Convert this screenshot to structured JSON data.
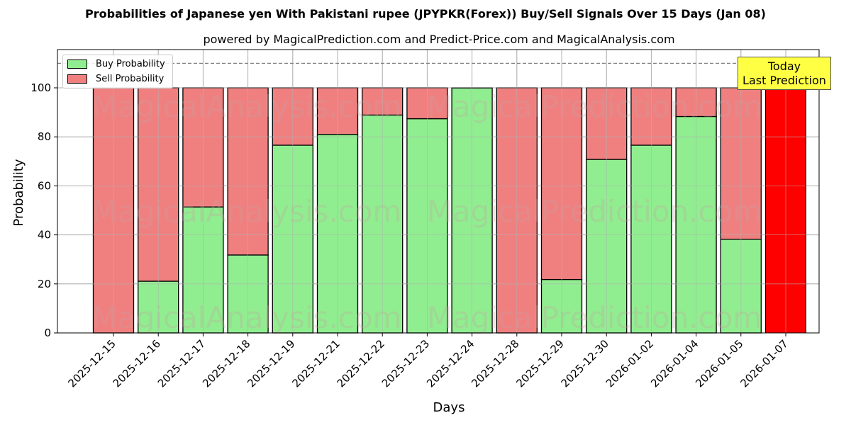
{
  "header": {
    "title": "Probabilities of Japanese yen With Pakistani rupee (JPYPKR(Forex)) Buy/Sell Signals Over 15 Days (Jan 08)",
    "subtitle": "powered by MagicalPrediction.com and Predict-Price.com and MagicalAnalysis.com"
  },
  "legend": {
    "buy_label": "Buy Probability",
    "sell_label": "Sell Probability"
  },
  "annotation": {
    "line1": "Today",
    "line2": "Last Prediction"
  },
  "watermarks": [
    "MagicalAnalysis.com",
    "MagicalPrediction.com"
  ],
  "colors": {
    "buy": "#90ee90",
    "sell": "#f08080",
    "today": "#ff0000",
    "annotation_bg": "#ffff44"
  },
  "chart_data": {
    "type": "bar",
    "stacked": true,
    "title": "Probabilities of Japanese yen With Pakistani rupee (JPYPKR(Forex)) Buy/Sell Signals Over 15 Days (Jan 08)",
    "subtitle": "powered by MagicalPrediction.com and Predict-Price.com and MagicalAnalysis.com",
    "xlabel": "Days",
    "ylabel": "Probability",
    "ylim": [
      0,
      115
    ],
    "yticks": [
      0,
      20,
      40,
      60,
      80,
      100
    ],
    "grid": true,
    "legend_position": "upper left",
    "reference_line": {
      "y": 110,
      "style": "dashed",
      "color": "#808080"
    },
    "categories": [
      "2025-12-15",
      "2025-12-16",
      "2025-12-17",
      "2025-12-18",
      "2025-12-19",
      "2025-12-21",
      "2025-12-22",
      "2025-12-23",
      "2025-12-24",
      "2025-12-28",
      "2025-12-29",
      "2025-12-30",
      "2026-01-02",
      "2026-01-04",
      "2026-01-05",
      "2026-01-07"
    ],
    "series": [
      {
        "name": "Buy Probability",
        "values": [
          0,
          21.1,
          51.4,
          31.8,
          76.6,
          81.0,
          88.9,
          87.4,
          99.9,
          0,
          21.8,
          70.8,
          76.6,
          88.3,
          38.2,
          0
        ]
      },
      {
        "name": "Sell Probability",
        "values": [
          100,
          78.9,
          48.6,
          68.2,
          23.4,
          19.0,
          11.1,
          12.6,
          0.1,
          100,
          78.2,
          29.2,
          23.4,
          11.7,
          61.8,
          100
        ]
      }
    ],
    "annotations": [
      {
        "text": "Today\nLast Prediction",
        "x": "2026-01-07"
      }
    ],
    "highlight": {
      "category": "2026-01-07",
      "color": "#ff0000",
      "value": 100
    }
  }
}
